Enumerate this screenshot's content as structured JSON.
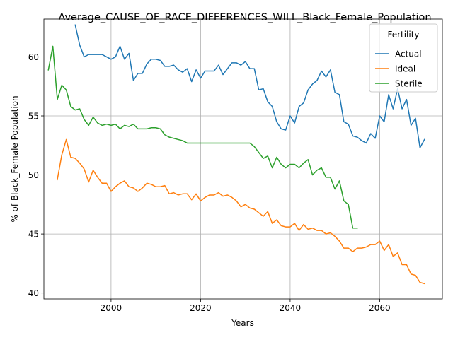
{
  "chart_data": {
    "type": "line",
    "title": "Average_CAUSE_OF_RACE_DIFFERENCES_WILL_Black_Female_Population",
    "xlabel": "Years",
    "ylabel": "% of Black_Female Population",
    "xlim": [
      1985,
      2074
    ],
    "ylim": [
      39.5,
      63.2
    ],
    "xticks": [
      2000,
      2020,
      2040,
      2060
    ],
    "yticks": [
      40,
      45,
      50,
      55,
      60
    ],
    "grid": true,
    "legend": {
      "title": "Fertility",
      "placement": "top-right"
    },
    "colors": {
      "Actual": "#1f77b4",
      "Ideal": "#ff7f0e",
      "Sterile": "#2ca02c"
    },
    "series": [
      {
        "name": "Actual",
        "x": [
          1992,
          1993,
          1994,
          1995,
          1996,
          1997,
          1998,
          1999,
          2000,
          2001,
          2002,
          2003,
          2004,
          2005,
          2006,
          2007,
          2008,
          2009,
          2010,
          2011,
          2012,
          2013,
          2014,
          2015,
          2016,
          2017,
          2018,
          2019,
          2020,
          2021,
          2022,
          2023,
          2024,
          2025,
          2026,
          2027,
          2028,
          2029,
          2030,
          2031,
          2032,
          2033,
          2034,
          2035,
          2036,
          2037,
          2038,
          2039,
          2040,
          2041,
          2042,
          2043,
          2044,
          2045,
          2046,
          2047,
          2048,
          2049,
          2050,
          2051,
          2052,
          2053,
          2054,
          2055,
          2056,
          2057,
          2058,
          2059,
          2060,
          2061,
          2062,
          2063,
          2064,
          2065,
          2066,
          2067,
          2068,
          2069,
          2070
        ],
        "values": [
          62.7,
          61.0,
          60.0,
          60.2,
          60.2,
          60.2,
          60.2,
          60.0,
          59.8,
          60.0,
          60.9,
          59.8,
          60.3,
          58.0,
          58.6,
          58.6,
          59.4,
          59.8,
          59.8,
          59.7,
          59.2,
          59.2,
          59.3,
          58.9,
          58.7,
          59.0,
          57.9,
          58.9,
          58.2,
          58.8,
          58.8,
          58.8,
          59.3,
          58.5,
          59.0,
          59.5,
          59.5,
          59.3,
          59.6,
          59.0,
          59.0,
          57.2,
          57.3,
          56.2,
          55.8,
          54.5,
          53.9,
          53.8,
          55.0,
          54.4,
          55.8,
          56.1,
          57.2,
          57.7,
          58.0,
          58.8,
          58.3,
          58.9,
          57.0,
          56.8,
          54.5,
          54.3,
          53.3,
          53.2,
          52.9,
          52.7,
          53.5,
          53.1,
          55.0,
          54.5,
          56.8,
          55.6,
          57.3,
          55.6,
          56.4,
          54.2,
          54.8,
          52.3,
          53.0
        ]
      },
      {
        "name": "Ideal",
        "x": [
          1988,
          1989,
          1990,
          1991,
          1992,
          1993,
          1994,
          1995,
          1996,
          1997,
          1998,
          1999,
          2000,
          2001,
          2002,
          2003,
          2004,
          2005,
          2006,
          2007,
          2008,
          2009,
          2010,
          2011,
          2012,
          2013,
          2014,
          2015,
          2016,
          2017,
          2018,
          2019,
          2020,
          2021,
          2022,
          2023,
          2024,
          2025,
          2026,
          2027,
          2028,
          2029,
          2030,
          2031,
          2032,
          2033,
          2034,
          2035,
          2036,
          2037,
          2038,
          2039,
          2040,
          2041,
          2042,
          2043,
          2044,
          2045,
          2046,
          2047,
          2048,
          2049,
          2050,
          2051,
          2052,
          2053,
          2054,
          2055,
          2056,
          2057,
          2058,
          2059,
          2060,
          2061,
          2062,
          2063,
          2064,
          2065,
          2066,
          2067,
          2068,
          2069,
          2070
        ],
        "values": [
          49.6,
          51.7,
          53.0,
          51.5,
          51.4,
          51.0,
          50.5,
          49.4,
          50.4,
          49.8,
          49.3,
          49.3,
          48.6,
          49.0,
          49.3,
          49.5,
          49.0,
          48.9,
          48.6,
          48.9,
          49.3,
          49.2,
          49.0,
          49.0,
          49.1,
          48.4,
          48.5,
          48.3,
          48.4,
          48.4,
          47.9,
          48.4,
          47.8,
          48.1,
          48.3,
          48.3,
          48.5,
          48.2,
          48.3,
          48.1,
          47.8,
          47.3,
          47.5,
          47.2,
          47.1,
          46.8,
          46.5,
          46.9,
          45.9,
          46.2,
          45.7,
          45.6,
          45.6,
          45.9,
          45.3,
          45.8,
          45.4,
          45.5,
          45.3,
          45.3,
          45.0,
          45.1,
          44.8,
          44.4,
          43.8,
          43.8,
          43.5,
          43.8,
          43.8,
          43.9,
          44.1,
          44.1,
          44.4,
          43.6,
          44.1,
          43.1,
          43.4,
          42.4,
          42.4,
          41.6,
          41.5,
          40.9,
          40.8
        ]
      },
      {
        "name": "Sterile",
        "x": [
          1986,
          1987,
          1988,
          1989,
          1990,
          1991,
          1992,
          1993,
          1994,
          1995,
          1996,
          1997,
          1998,
          1999,
          2000,
          2001,
          2002,
          2003,
          2004,
          2005,
          2006,
          2007,
          2008,
          2009,
          2010,
          2011,
          2012,
          2013,
          2014,
          2015,
          2016,
          2017,
          2018,
          2019,
          2020,
          2021,
          2022,
          2023,
          2024,
          2025,
          2026,
          2027,
          2028,
          2029,
          2030,
          2031,
          2032,
          2033,
          2034,
          2035,
          2036,
          2037,
          2038,
          2039,
          2040,
          2041,
          2042,
          2043,
          2044,
          2045,
          2046,
          2047,
          2048,
          2049,
          2050,
          2051,
          2052,
          2053,
          2054,
          2055
        ],
        "values": [
          58.9,
          60.9,
          56.4,
          57.6,
          57.2,
          55.8,
          55.5,
          55.6,
          54.7,
          54.2,
          54.9,
          54.4,
          54.2,
          54.3,
          54.2,
          54.3,
          53.9,
          54.2,
          54.1,
          54.3,
          53.9,
          53.9,
          53.9,
          54.0,
          54.0,
          53.9,
          53.4,
          53.2,
          53.1,
          53.0,
          52.9,
          52.7,
          52.7,
          52.7,
          52.7,
          52.7,
          52.7,
          52.7,
          52.7,
          52.7,
          52.7,
          52.7,
          52.7,
          52.7,
          52.7,
          52.7,
          52.4,
          51.9,
          51.4,
          51.6,
          50.6,
          51.5,
          50.9,
          50.6,
          50.9,
          50.9,
          50.6,
          51.0,
          51.3,
          50.0,
          50.4,
          50.6,
          49.8,
          49.8,
          48.8,
          49.5,
          47.8,
          47.5,
          45.5,
          45.5
        ]
      }
    ]
  }
}
